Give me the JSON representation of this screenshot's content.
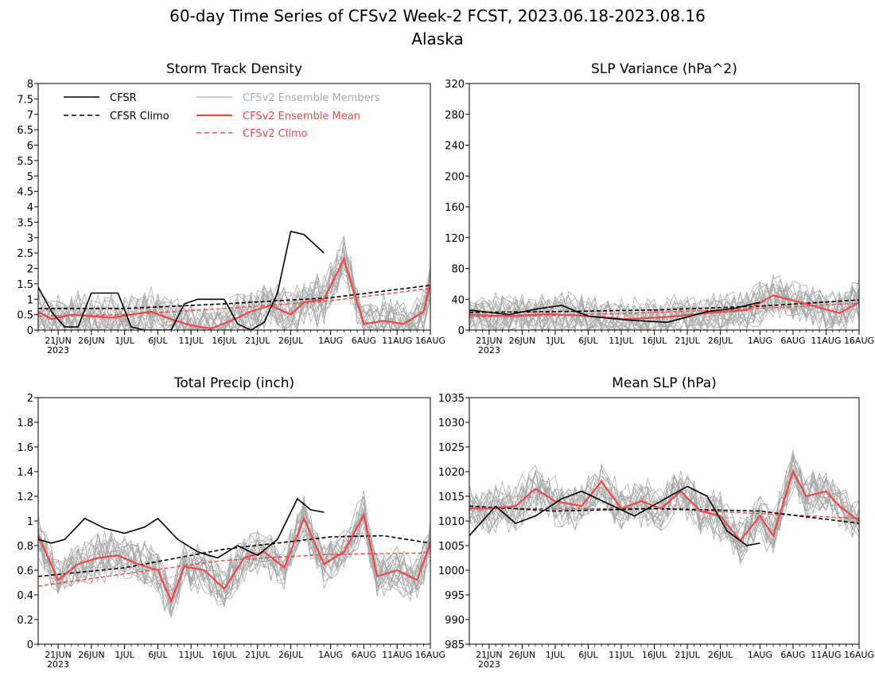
{
  "title": "60-day Time Series of CFSv2 Week-2 FCST, 2023.06.18-2023.08.16",
  "subtitle": "Alaska",
  "colors": {
    "cfsr": "#000000",
    "cfsr_climo": "#000000",
    "ensemble_members": "#aaaaaa",
    "ensemble_mean": "#f04848",
    "cfsv2_climo": "#f04848"
  },
  "x_axis": {
    "start": "2023-06-18",
    "end": "2023-08-16",
    "tick_labels": [
      "21JUN",
      "26JUN",
      "1JUL",
      "6JUL",
      "11JUL",
      "16JUL",
      "21JUL",
      "26JUL",
      "1AUG",
      "6AUG",
      "11AUG",
      "16AUG"
    ],
    "tick_dates": [
      "2023-06-21",
      "2023-06-26",
      "2023-07-01",
      "2023-07-06",
      "2023-07-11",
      "2023-07-16",
      "2023-07-21",
      "2023-07-26",
      "2023-08-01",
      "2023-08-06",
      "2023-08-11",
      "2023-08-16"
    ],
    "year_label": "2023"
  },
  "legend": {
    "placement": "top-left of first panel",
    "entries": [
      "CFSR",
      "CFSR Climo",
      "CFSv2 Ensemble Members",
      "CFSv2 Ensemble Mean",
      "CFSv2 Climo"
    ]
  },
  "chart_data": [
    {
      "type": "line",
      "title": "Storm Track Density",
      "ylim": [
        0,
        8
      ],
      "yticks": [
        "0",
        "0.5",
        "1",
        "1.5",
        "2",
        "2.5",
        "3",
        "3.5",
        "4",
        "4.5",
        "5",
        "5.5",
        "6",
        "6.5",
        "7",
        "7.5",
        "8"
      ],
      "ensemble_members_count": 20,
      "series": [
        {
          "name": "CFSR",
          "x": [
            "2023-06-18",
            "2023-06-20",
            "2023-06-22",
            "2023-06-24",
            "2023-06-26",
            "2023-06-30",
            "2023-07-02",
            "2023-07-04",
            "2023-07-08",
            "2023-07-10",
            "2023-07-12",
            "2023-07-16",
            "2023-07-18",
            "2023-07-20",
            "2023-07-22",
            "2023-07-24",
            "2023-07-26",
            "2023-07-28",
            "2023-07-30",
            "2023-07-31"
          ],
          "y": [
            1.4,
            0.6,
            0.1,
            0.1,
            1.2,
            1.2,
            0.1,
            0,
            0,
            0.85,
            1,
            1,
            0.2,
            0,
            0.25,
            1.2,
            3.2,
            3.1,
            2.7,
            2.5
          ]
        },
        {
          "name": "CFSR Climo",
          "x": [
            "2023-06-18",
            "2023-07-01",
            "2023-07-16",
            "2023-08-01",
            "2023-08-16"
          ],
          "y": [
            0.7,
            0.7,
            0.85,
            1.05,
            1.45
          ]
        },
        {
          "name": "CFSv2 Ensemble Mean",
          "x": [
            "2023-06-18",
            "2023-06-20",
            "2023-06-23",
            "2023-06-26",
            "2023-06-29",
            "2023-07-02",
            "2023-07-05",
            "2023-07-08",
            "2023-07-11",
            "2023-07-14",
            "2023-07-17",
            "2023-07-20",
            "2023-07-23",
            "2023-07-26",
            "2023-07-28",
            "2023-07-31",
            "2023-08-03",
            "2023-08-06",
            "2023-08-09",
            "2023-08-12",
            "2023-08-15",
            "2023-08-16"
          ],
          "y": [
            0.6,
            0.35,
            0.5,
            0.45,
            0.4,
            0.5,
            0.6,
            0.35,
            0.15,
            0.05,
            0.3,
            0.6,
            0.8,
            0.5,
            0.9,
            1.0,
            2.3,
            0.2,
            0.3,
            0.2,
            0.6,
            1.5
          ]
        },
        {
          "name": "CFSv2 Climo",
          "x": [
            "2023-06-18",
            "2023-07-01",
            "2023-07-16",
            "2023-08-01",
            "2023-08-16"
          ],
          "y": [
            0.45,
            0.5,
            0.7,
            0.95,
            1.35
          ]
        }
      ]
    },
    {
      "type": "line",
      "title": "SLP Variance (hPa^2)",
      "ylim": [
        0,
        320
      ],
      "yticks": [
        "0",
        "40",
        "80",
        "120",
        "160",
        "200",
        "240",
        "280",
        "320"
      ],
      "ensemble_members_count": 20,
      "series": [
        {
          "name": "CFSR",
          "x": [
            "2023-06-18",
            "2023-06-24",
            "2023-06-28",
            "2023-07-02",
            "2023-07-06",
            "2023-07-12",
            "2023-07-18",
            "2023-07-24",
            "2023-07-28",
            "2023-08-01"
          ],
          "y": [
            26,
            20,
            27,
            32,
            18,
            13,
            10,
            24,
            28,
            36
          ]
        },
        {
          "name": "CFSR Climo",
          "x": [
            "2023-06-18",
            "2023-07-01",
            "2023-07-16",
            "2023-08-01",
            "2023-08-16"
          ],
          "y": [
            23,
            24,
            26,
            31,
            39
          ]
        },
        {
          "name": "CFSv2 Ensemble Mean",
          "x": [
            "2023-06-18",
            "2023-06-24",
            "2023-06-30",
            "2023-07-06",
            "2023-07-12",
            "2023-07-18",
            "2023-07-24",
            "2023-07-30",
            "2023-08-03",
            "2023-08-08",
            "2023-08-13",
            "2023-08-16"
          ],
          "y": [
            20,
            18,
            21,
            18,
            14,
            17,
            22,
            26,
            45,
            34,
            22,
            36
          ]
        },
        {
          "name": "CFSv2 Climo",
          "x": [
            "2023-06-18",
            "2023-07-01",
            "2023-07-16",
            "2023-08-01",
            "2023-08-16"
          ],
          "y": [
            17,
            19,
            23,
            28,
            35
          ]
        }
      ]
    },
    {
      "type": "line",
      "title": "Total Precip (inch)",
      "ylim": [
        0,
        2
      ],
      "yticks": [
        "0",
        "0.2",
        "0.4",
        "0.6",
        "0.8",
        "1",
        "1.2",
        "1.4",
        "1.6",
        "1.8",
        "2"
      ],
      "ensemble_members_count": 20,
      "series": [
        {
          "name": "CFSR",
          "x": [
            "2023-06-18",
            "2023-06-20",
            "2023-06-22",
            "2023-06-25",
            "2023-06-28",
            "2023-07-01",
            "2023-07-04",
            "2023-07-06",
            "2023-07-09",
            "2023-07-12",
            "2023-07-15",
            "2023-07-18",
            "2023-07-21",
            "2023-07-24",
            "2023-07-27",
            "2023-07-29",
            "2023-07-31"
          ],
          "y": [
            0.85,
            0.82,
            0.85,
            1.02,
            0.94,
            0.9,
            0.95,
            1.02,
            0.85,
            0.75,
            0.7,
            0.8,
            0.72,
            0.85,
            1.18,
            1.09,
            1.07
          ]
        },
        {
          "name": "CFSR Climo",
          "x": [
            "2023-06-18",
            "2023-07-01",
            "2023-07-16",
            "2023-08-01",
            "2023-08-09",
            "2023-08-16"
          ],
          "y": [
            0.55,
            0.62,
            0.77,
            0.87,
            0.88,
            0.82
          ]
        },
        {
          "name": "CFSv2 Ensemble Mean",
          "x": [
            "2023-06-18",
            "2023-06-21",
            "2023-06-24",
            "2023-06-27",
            "2023-06-30",
            "2023-07-03",
            "2023-07-06",
            "2023-07-08",
            "2023-07-10",
            "2023-07-13",
            "2023-07-16",
            "2023-07-19",
            "2023-07-22",
            "2023-07-25",
            "2023-07-28",
            "2023-07-31",
            "2023-08-03",
            "2023-08-06",
            "2023-08-08",
            "2023-08-11",
            "2023-08-14",
            "2023-08-16"
          ],
          "y": [
            0.88,
            0.52,
            0.65,
            0.7,
            0.72,
            0.65,
            0.6,
            0.35,
            0.63,
            0.6,
            0.45,
            0.7,
            0.75,
            0.62,
            1.02,
            0.65,
            0.75,
            1.05,
            0.55,
            0.6,
            0.52,
            0.82
          ]
        },
        {
          "name": "CFSv2 Climo",
          "x": [
            "2023-06-18",
            "2023-07-01",
            "2023-07-16",
            "2023-08-01",
            "2023-08-16"
          ],
          "y": [
            0.47,
            0.57,
            0.68,
            0.73,
            0.74
          ]
        }
      ]
    },
    {
      "type": "line",
      "title": "Mean SLP (hPa)",
      "ylim": [
        985,
        1035
      ],
      "yticks": [
        "985",
        "990",
        "995",
        "1000",
        "1005",
        "1010",
        "1015",
        "1020",
        "1025",
        "1030",
        "1035"
      ],
      "ensemble_members_count": 20,
      "series": [
        {
          "name": "CFSR",
          "x": [
            "2023-06-18",
            "2023-06-22",
            "2023-06-25",
            "2023-06-28",
            "2023-07-02",
            "2023-07-05",
            "2023-07-09",
            "2023-07-13",
            "2023-07-17",
            "2023-07-21",
            "2023-07-24",
            "2023-07-27",
            "2023-07-30",
            "2023-08-01"
          ],
          "y": [
            1007,
            1013,
            1009.5,
            1011,
            1014.5,
            1016,
            1013.5,
            1011,
            1014,
            1017,
            1015,
            1008,
            1005,
            1005.5
          ]
        },
        {
          "name": "CFSR Climo",
          "x": [
            "2023-06-18",
            "2023-07-01",
            "2023-07-16",
            "2023-08-01",
            "2023-08-16"
          ],
          "y": [
            1013,
            1012,
            1012.5,
            1012,
            1009.5
          ]
        },
        {
          "name": "CFSv2 Ensemble Mean",
          "x": [
            "2023-06-18",
            "2023-06-21",
            "2023-06-25",
            "2023-06-28",
            "2023-07-01",
            "2023-07-05",
            "2023-07-08",
            "2023-07-11",
            "2023-07-14",
            "2023-07-17",
            "2023-07-20",
            "2023-07-23",
            "2023-07-26",
            "2023-07-29",
            "2023-08-01",
            "2023-08-03",
            "2023-08-06",
            "2023-08-08",
            "2023-08-11",
            "2023-08-13",
            "2023-08-16"
          ],
          "y": [
            1012.5,
            1012.5,
            1013,
            1016.5,
            1014,
            1013,
            1018,
            1012.5,
            1014,
            1012.5,
            1016,
            1012,
            1011,
            1006,
            1011,
            1007,
            1020,
            1015,
            1016,
            1013,
            1010
          ]
        },
        {
          "name": "CFSv2 Climo",
          "x": [
            "2023-06-18",
            "2023-07-01",
            "2023-07-16",
            "2023-08-01",
            "2023-08-16"
          ],
          "y": [
            1012.5,
            1012.5,
            1012.5,
            1011.5,
            1010.5
          ]
        }
      ]
    }
  ]
}
